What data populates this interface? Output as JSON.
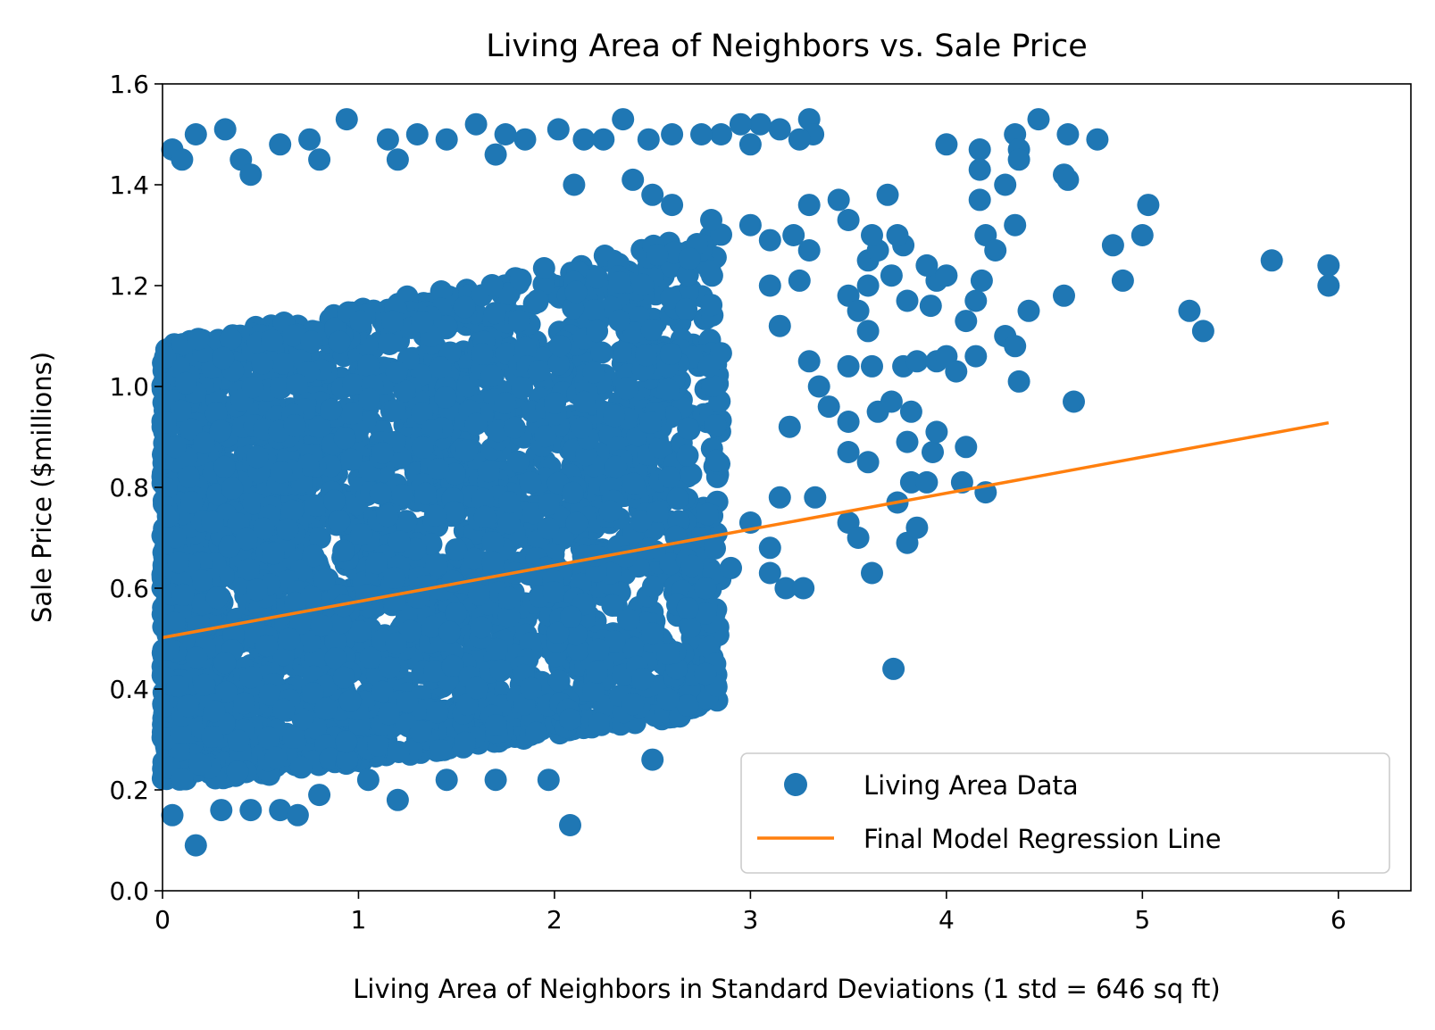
{
  "chart_data": {
    "type": "scatter",
    "title": "Living Area of Neighbors vs. Sale Price",
    "xlabel": "Living Area of Neighbors in Standard Deviations (1 std = 646 sq ft)",
    "ylabel": "Sale Price ($millions)",
    "xlim": [
      0,
      6.37
    ],
    "ylim": [
      0,
      1.6
    ],
    "xticks": [
      0,
      1,
      2,
      3,
      4,
      5,
      6
    ],
    "xtick_labels": [
      "0",
      "1",
      "2",
      "3",
      "4",
      "5",
      "6"
    ],
    "yticks": [
      0.0,
      0.2,
      0.4,
      0.6,
      0.8,
      1.0,
      1.2,
      1.4,
      1.6
    ],
    "ytick_labels": [
      "0.0",
      "0.2",
      "0.4",
      "0.6",
      "0.8",
      "1.0",
      "1.2",
      "1.4",
      "1.6"
    ],
    "grid": false,
    "legend_position": "lower-right",
    "series": [
      {
        "name": "Living Area Data",
        "kind": "scatter",
        "color": "#1f77b4",
        "points": [
          [
            0.05,
            0.15
          ],
          [
            0.17,
            0.09
          ],
          [
            0.3,
            0.16
          ],
          [
            0.45,
            0.16
          ],
          [
            0.6,
            0.16
          ],
          [
            0.69,
            0.15
          ],
          [
            0.8,
            0.19
          ],
          [
            1.05,
            0.22
          ],
          [
            1.2,
            0.18
          ],
          [
            1.45,
            0.22
          ],
          [
            1.7,
            0.22
          ],
          [
            1.97,
            0.22
          ],
          [
            2.08,
            0.13
          ],
          [
            2.5,
            0.26
          ],
          [
            2.08,
            0.34
          ],
          [
            2.4,
            0.37
          ],
          [
            2.58,
            0.38
          ],
          [
            2.45,
            0.42
          ],
          [
            2.82,
            0.45
          ],
          [
            2.77,
            0.43
          ],
          [
            3.73,
            0.44
          ],
          [
            2.5,
            0.51
          ],
          [
            2.58,
            0.47
          ],
          [
            2.77,
            0.55
          ],
          [
            2.77,
            0.6
          ],
          [
            2.68,
            0.56
          ],
          [
            2.9,
            0.64
          ],
          [
            3.1,
            0.63
          ],
          [
            3.18,
            0.6
          ],
          [
            3.27,
            0.6
          ],
          [
            3.0,
            0.73
          ],
          [
            3.1,
            0.68
          ],
          [
            3.15,
            0.78
          ],
          [
            3.33,
            0.78
          ],
          [
            3.5,
            0.73
          ],
          [
            3.55,
            0.7
          ],
          [
            3.62,
            0.63
          ],
          [
            3.6,
            0.85
          ],
          [
            3.5,
            0.87
          ],
          [
            3.8,
            0.69
          ],
          [
            3.85,
            0.72
          ],
          [
            3.75,
            0.77
          ],
          [
            3.82,
            0.81
          ],
          [
            3.9,
            0.81
          ],
          [
            3.8,
            0.89
          ],
          [
            3.93,
            0.87
          ],
          [
            3.95,
            0.91
          ],
          [
            4.1,
            0.88
          ],
          [
            4.08,
            0.81
          ],
          [
            4.2,
            0.79
          ],
          [
            3.82,
            0.95
          ],
          [
            3.65,
            0.95
          ],
          [
            3.72,
            0.97
          ],
          [
            3.4,
            0.96
          ],
          [
            3.5,
            0.93
          ],
          [
            3.2,
            0.92
          ],
          [
            3.35,
            1.0
          ],
          [
            3.3,
            1.05
          ],
          [
            3.5,
            1.04
          ],
          [
            3.62,
            1.04
          ],
          [
            3.78,
            1.04
          ],
          [
            3.85,
            1.05
          ],
          [
            3.95,
            1.05
          ],
          [
            4.0,
            1.06
          ],
          [
            4.05,
            1.03
          ],
          [
            4.15,
            1.06
          ],
          [
            4.3,
            1.1
          ],
          [
            4.35,
            1.08
          ],
          [
            4.37,
            1.01
          ],
          [
            4.42,
            1.15
          ],
          [
            4.65,
            0.97
          ],
          [
            4.1,
            1.13
          ],
          [
            4.15,
            1.17
          ],
          [
            3.95,
            1.21
          ],
          [
            4.0,
            1.22
          ],
          [
            4.18,
            1.21
          ],
          [
            3.8,
            1.17
          ],
          [
            3.92,
            1.16
          ],
          [
            3.9,
            1.24
          ],
          [
            3.78,
            1.28
          ],
          [
            3.75,
            1.3
          ],
          [
            3.6,
            1.11
          ],
          [
            3.6,
            1.2
          ],
          [
            3.5,
            1.18
          ],
          [
            3.55,
            1.15
          ],
          [
            3.6,
            1.25
          ],
          [
            3.65,
            1.27
          ],
          [
            3.72,
            1.22
          ],
          [
            3.7,
            1.38
          ],
          [
            3.62,
            1.3
          ],
          [
            3.5,
            1.33
          ],
          [
            3.45,
            1.37
          ],
          [
            3.3,
            1.36
          ],
          [
            3.22,
            1.3
          ],
          [
            3.3,
            1.27
          ],
          [
            3.25,
            1.21
          ],
          [
            3.1,
            1.2
          ],
          [
            3.15,
            1.12
          ],
          [
            3.3,
            1.53
          ],
          [
            3.32,
            1.5
          ],
          [
            3.25,
            1.49
          ],
          [
            3.15,
            1.51
          ],
          [
            3.05,
            1.52
          ],
          [
            3.0,
            1.48
          ],
          [
            2.95,
            1.52
          ],
          [
            2.85,
            1.5
          ],
          [
            2.75,
            1.5
          ],
          [
            2.6,
            1.5
          ],
          [
            2.48,
            1.49
          ],
          [
            2.35,
            1.53
          ],
          [
            2.25,
            1.49
          ],
          [
            2.15,
            1.49
          ],
          [
            2.02,
            1.51
          ],
          [
            1.85,
            1.49
          ],
          [
            1.75,
            1.5
          ],
          [
            1.6,
            1.52
          ],
          [
            1.45,
            1.49
          ],
          [
            1.3,
            1.5
          ],
          [
            1.15,
            1.49
          ],
          [
            0.94,
            1.53
          ],
          [
            0.75,
            1.49
          ],
          [
            0.6,
            1.48
          ],
          [
            0.32,
            1.51
          ],
          [
            0.17,
            1.5
          ],
          [
            0.05,
            1.47
          ],
          [
            0.1,
            1.45
          ],
          [
            0.4,
            1.45
          ],
          [
            0.45,
            1.42
          ],
          [
            0.8,
            1.45
          ],
          [
            1.2,
            1.45
          ],
          [
            1.7,
            1.46
          ],
          [
            2.1,
            1.4
          ],
          [
            2.4,
            1.41
          ],
          [
            2.5,
            1.38
          ],
          [
            2.6,
            1.36
          ],
          [
            2.8,
            1.33
          ],
          [
            3.0,
            1.32
          ],
          [
            3.1,
            1.29
          ],
          [
            4.0,
            1.48
          ],
          [
            4.17,
            1.47
          ],
          [
            4.17,
            1.43
          ],
          [
            4.17,
            1.37
          ],
          [
            4.3,
            1.4
          ],
          [
            4.35,
            1.5
          ],
          [
            4.37,
            1.47
          ],
          [
            4.37,
            1.45
          ],
          [
            4.47,
            1.53
          ],
          [
            4.6,
            1.42
          ],
          [
            4.62,
            1.41
          ],
          [
            4.62,
            1.5
          ],
          [
            4.77,
            1.49
          ],
          [
            4.35,
            1.32
          ],
          [
            4.2,
            1.3
          ],
          [
            4.25,
            1.27
          ],
          [
            4.85,
            1.28
          ],
          [
            4.9,
            1.21
          ],
          [
            5.0,
            1.3
          ],
          [
            5.03,
            1.36
          ],
          [
            5.24,
            1.15
          ],
          [
            5.31,
            1.11
          ],
          [
            5.66,
            1.25
          ],
          [
            5.95,
            1.24
          ],
          [
            5.95,
            1.2
          ],
          [
            4.6,
            1.18
          ]
        ]
      },
      {
        "name": "Final Model Regression Line",
        "kind": "line",
        "color": "#ff7f0e",
        "x": [
          0,
          5.95
        ],
        "y": [
          0.502,
          0.928
        ]
      }
    ]
  }
}
